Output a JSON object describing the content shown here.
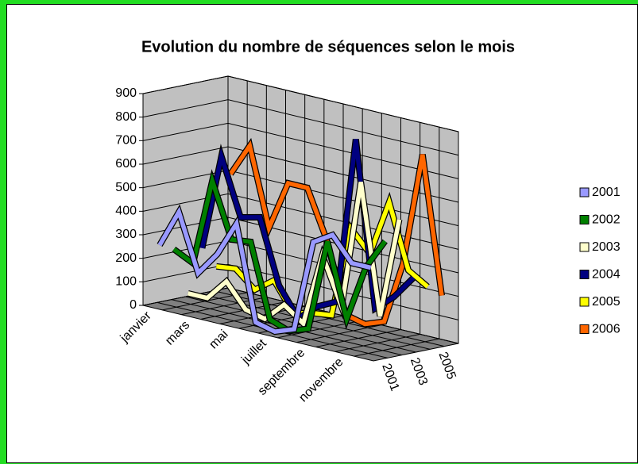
{
  "chart_data": {
    "type": "line3d",
    "title": "Evolution du nombre de séquences selon le mois",
    "categories": [
      "janvier",
      null,
      "mars",
      null,
      "mai",
      null,
      "juillet",
      null,
      "septembre",
      null,
      "novembre",
      null
    ],
    "depth_labels": [
      "2001",
      null,
      "2003",
      null,
      "2005",
      null
    ],
    "ylim": [
      0,
      900
    ],
    "yticks": [
      0,
      100,
      200,
      300,
      400,
      500,
      600,
      700,
      800,
      900
    ],
    "grid": true,
    "legend": "right",
    "series": [
      {
        "name": "2001",
        "color": "#9999ff",
        "values": [
          260,
          420,
          180,
          280,
          430,
          30,
          10,
          40,
          430,
          480,
          380,
          380
        ]
      },
      {
        "name": "2002",
        "color": "#008000",
        "values": [
          230,
          190,
          560,
          330,
          340,
          30,
          0,
          30,
          420,
          110,
          350,
          480
        ]
      },
      {
        "name": "2003",
        "color": "#ffffcc",
        "values": [
          30,
          30,
          120,
          20,
          0,
          80,
          20,
          330,
          130,
          680,
          130,
          560
        ]
      },
      {
        "name": "2004",
        "color": "#000080",
        "values": [
          210,
          620,
          380,
          400,
          130,
          10,
          80,
          120,
          830,
          130,
          200,
          300
        ]
      },
      {
        "name": "2005",
        "color": "#ffff00",
        "values": [
          120,
          130,
          60,
          120,
          0,
          20,
          30,
          420,
          330,
          570,
          300,
          250
        ]
      },
      {
        "name": "2006",
        "color": "#ff6600",
        "values": [
          500,
          640,
          310,
          520,
          520,
          320,
          20,
          0,
          30,
          300,
          780,
          200
        ]
      }
    ]
  }
}
